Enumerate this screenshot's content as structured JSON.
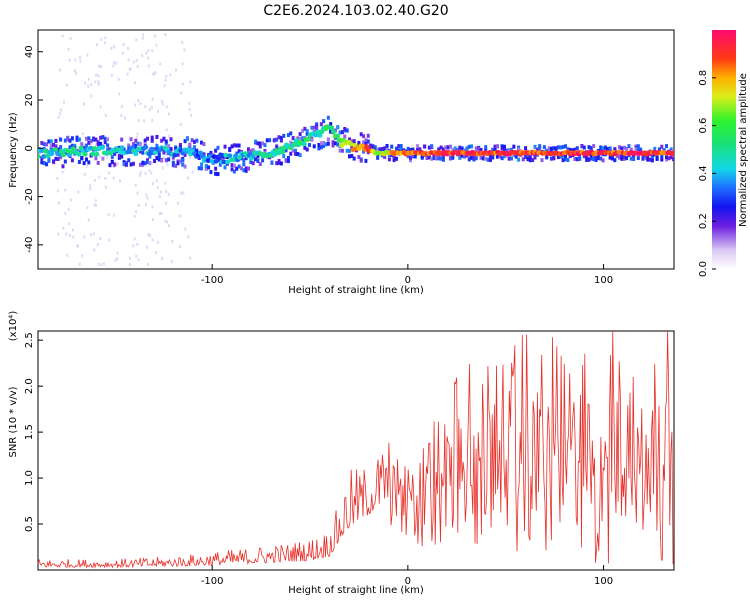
{
  "title": "C2E6.2024.103.02.40.G20",
  "chart_data": [
    {
      "type": "heatmap",
      "xlabel": "Height of straight line (km)",
      "ylabel": "Frequency (Hz)",
      "xlim": [
        -189,
        136
      ],
      "ylim": [
        -50,
        49
      ],
      "x_ticks": [
        -100,
        0,
        100
      ],
      "y_ticks": [
        -40,
        -20,
        0,
        20,
        40
      ],
      "colorbar": {
        "label": "Normalized spectral amplitude",
        "range": [
          0.0,
          1.0
        ],
        "ticks": [
          0.0,
          0.2,
          0.4,
          0.6,
          0.8
        ]
      },
      "ridge": {
        "x": [
          -189,
          -160,
          -130,
          -110,
          -100,
          -90,
          -70,
          -50,
          -40,
          -35,
          -30,
          -25,
          -20,
          -15,
          0,
          20,
          60,
          100,
          136
        ],
        "frequency_hz": [
          -2,
          -1,
          -1,
          -2,
          -5,
          -4,
          -2,
          4,
          8,
          3,
          1,
          0,
          -1,
          -2,
          -2,
          -2,
          -2,
          -2,
          -2
        ],
        "normalized_amplitude": [
          0.45,
          0.45,
          0.42,
          0.35,
          0.35,
          0.4,
          0.45,
          0.5,
          0.5,
          0.6,
          0.75,
          0.85,
          0.9,
          0.7,
          0.85,
          0.9,
          0.9,
          0.9,
          0.9
        ]
      }
    },
    {
      "type": "line",
      "xlabel": "Height of straight line (km)",
      "ylabel": "SNR (10 * v/v)",
      "y_multiplier": "(x10⁴)",
      "xlim": [
        -189,
        136
      ],
      "ylim": [
        0,
        2.6
      ],
      "x_ticks": [
        -100,
        0,
        100
      ],
      "y_ticks": [
        0.5,
        1.0,
        1.5,
        2.0,
        2.5
      ],
      "color": "#e8302a",
      "envelope": {
        "x": [
          -189,
          -150,
          -120,
          -100,
          -80,
          -60,
          -50,
          -40,
          -35,
          -30,
          -20,
          -10,
          0,
          10,
          20,
          30,
          40,
          60,
          80,
          100,
          136
        ],
        "baseline": [
          0.03,
          0.03,
          0.04,
          0.05,
          0.07,
          0.09,
          0.1,
          0.15,
          0.3,
          0.45,
          0.6,
          0.75,
          0.7,
          0.7,
          0.7,
          0.85,
          0.9,
          0.9,
          0.95,
          0.9,
          0.9
        ],
        "peak": [
          0.12,
          0.12,
          0.15,
          0.2,
          0.25,
          0.3,
          0.35,
          0.45,
          0.75,
          1.1,
          1.15,
          1.45,
          1.6,
          1.65,
          2.0,
          2.3,
          2.45,
          2.5,
          2.55,
          2.6,
          2.5
        ]
      }
    }
  ]
}
